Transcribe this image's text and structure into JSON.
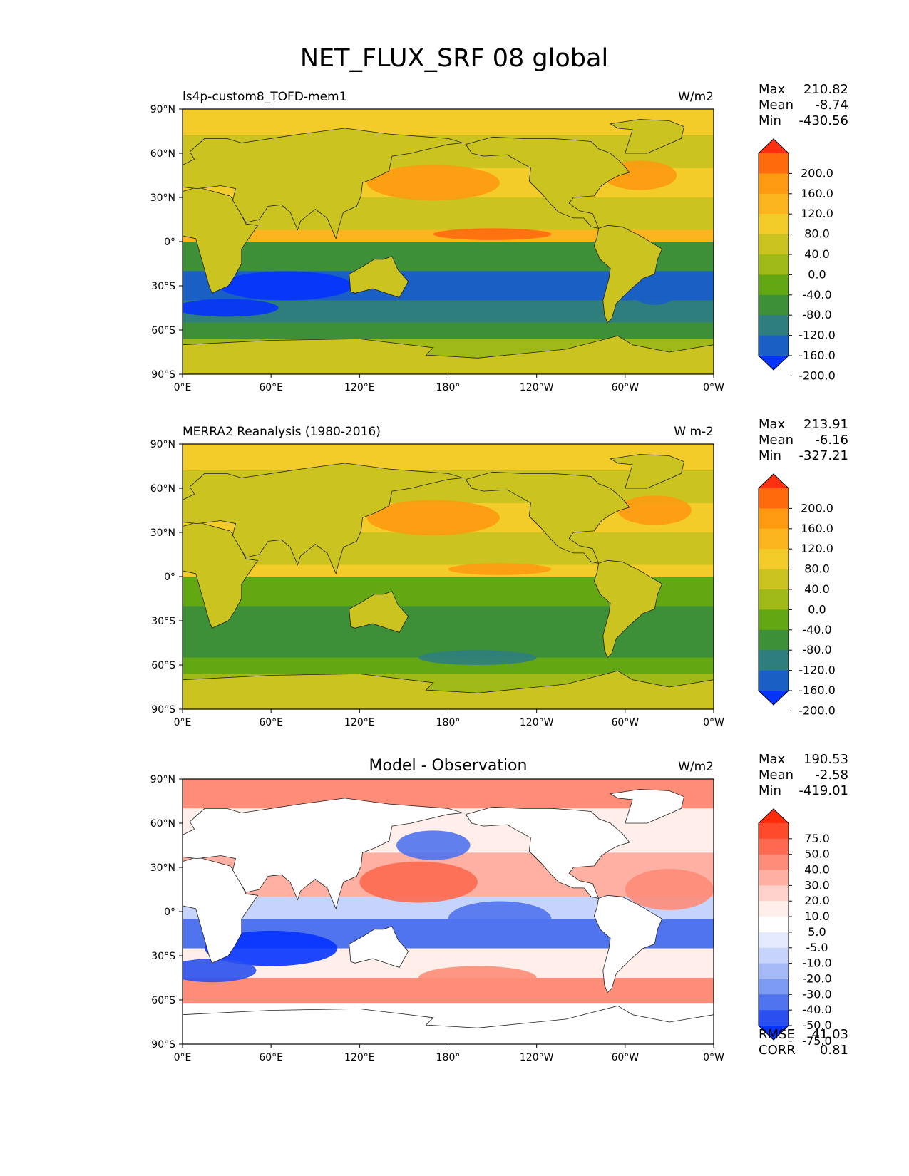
{
  "figure": {
    "title": "NET_FLUX_SRF 08 global"
  },
  "axes": {
    "lat_ticks": [
      {
        "value": 90,
        "label": "90°N"
      },
      {
        "value": 60,
        "label": "60°N"
      },
      {
        "value": 30,
        "label": "30°N"
      },
      {
        "value": 0,
        "label": "0°"
      },
      {
        "value": -30,
        "label": "30°S"
      },
      {
        "value": -60,
        "label": "60°S"
      },
      {
        "value": -90,
        "label": "90°S"
      }
    ],
    "lon_ticks": [
      {
        "value": 0,
        "label": "0°E"
      },
      {
        "value": 60,
        "label": "60°E"
      },
      {
        "value": 120,
        "label": "120°E"
      },
      {
        "value": 180,
        "label": "180°"
      },
      {
        "value": 240,
        "label": "120°W"
      },
      {
        "value": 300,
        "label": "60°W"
      },
      {
        "value": 360,
        "label": "0°W"
      }
    ]
  },
  "chart_data": [
    {
      "type": "heatmap",
      "panel": "model",
      "title": "",
      "subtitle": "ls4p-custom8_TOFD-mem1",
      "units": "W/m2",
      "stats": [
        {
          "label": "Max",
          "value": "210.82"
        },
        {
          "label": "Mean",
          "value": "-8.74"
        },
        {
          "label": "Min",
          "value": "-430.56"
        }
      ],
      "colorbar": {
        "labels": [
          "200.0",
          "160.0",
          "120.0",
          "80.0",
          "40.0",
          "0.0",
          "-40.0",
          "-80.0",
          "-120.0",
          "-160.0",
          "-200.0"
        ],
        "colors": [
          "#ff3010",
          "#ff6a0d",
          "#fd9a10",
          "#fdb51f",
          "#f3cc2a",
          "#cbc31f",
          "#9fba16",
          "#63a812",
          "#3d8f38",
          "#2e7e7e",
          "#1a5fc4",
          "#0533ff"
        ]
      },
      "xlim": [
        0,
        360
      ],
      "ylim": [
        -90,
        90
      ]
    },
    {
      "type": "heatmap",
      "panel": "obs",
      "title": "",
      "subtitle": "MERRA2 Reanalysis (1980-2016)",
      "units": "W m-2",
      "stats": [
        {
          "label": "Max",
          "value": "213.91"
        },
        {
          "label": "Mean",
          "value": "-6.16"
        },
        {
          "label": "Min",
          "value": "-327.21"
        }
      ],
      "colorbar": {
        "labels": [
          "200.0",
          "160.0",
          "120.0",
          "80.0",
          "40.0",
          "0.0",
          "-40.0",
          "-80.0",
          "-120.0",
          "-160.0",
          "-200.0"
        ],
        "colors": [
          "#ff3010",
          "#ff6a0d",
          "#fd9a10",
          "#fdb51f",
          "#f3cc2a",
          "#cbc31f",
          "#9fba16",
          "#63a812",
          "#3d8f38",
          "#2e7e7e",
          "#1a5fc4",
          "#0533ff"
        ]
      },
      "xlim": [
        0,
        360
      ],
      "ylim": [
        -90,
        90
      ]
    },
    {
      "type": "heatmap",
      "panel": "diff",
      "title": "Model - Observation",
      "subtitle": "",
      "units": "W/m2",
      "stats": [
        {
          "label": "Max",
          "value": "190.53"
        },
        {
          "label": "Mean",
          "value": "-2.58"
        },
        {
          "label": "Min",
          "value": "-419.01"
        }
      ],
      "bottom_stats": [
        {
          "label": "RMSE",
          "value": "41.03"
        },
        {
          "label": "CORR",
          "value": "0.81"
        }
      ],
      "colorbar": {
        "labels": [
          "75.0",
          "50.0",
          "40.0",
          "30.0",
          "20.0",
          "10.0",
          "5.0",
          "-5.0",
          "-10.0",
          "-20.0",
          "-30.0",
          "-40.0",
          "-50.0",
          "-75.0"
        ],
        "colors": [
          "#ff2a0a",
          "#ff4a2c",
          "#fd6a50",
          "#fd8c78",
          "#feb0a2",
          "#fed2ca",
          "#ffeeea",
          "#ffffff",
          "#e4ebff",
          "#c6d3fb",
          "#a6b9f7",
          "#7c9cf3",
          "#5073ee",
          "#2a4ff0",
          "#0533ff"
        ]
      },
      "xlim": [
        0,
        360
      ],
      "ylim": [
        -90,
        90
      ]
    }
  ]
}
